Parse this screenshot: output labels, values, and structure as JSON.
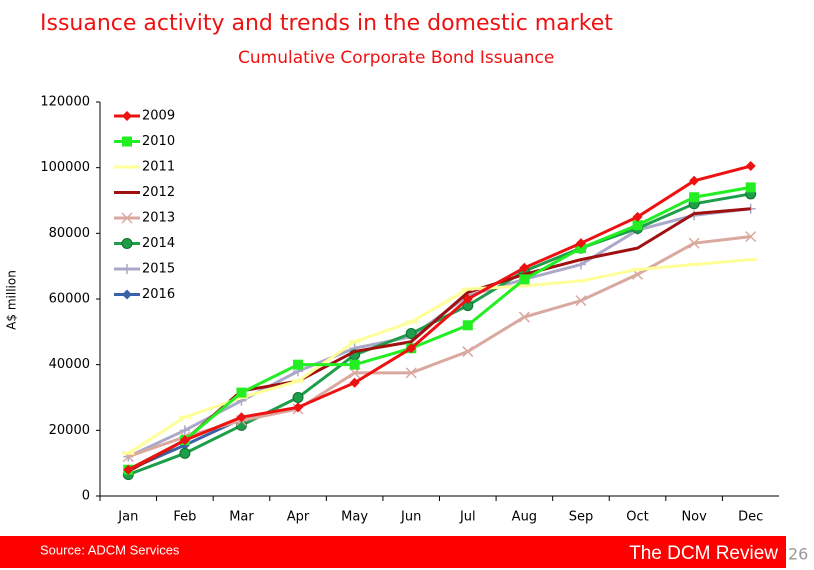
{
  "title": "Issuance activity and trends in the domestic market",
  "footer": {
    "source": "Source: ADCM Services",
    "brand": "The DCM Review",
    "page": "26"
  },
  "chart_data": {
    "type": "line",
    "title": "Cumulative Corporate Bond Issuance",
    "ylabel": "A$ million",
    "categories": [
      "Jan",
      "Feb",
      "Mar",
      "Apr",
      "May",
      "Jun",
      "Jul",
      "Aug",
      "Sep",
      "Oct",
      "Nov",
      "Dec"
    ],
    "ylim": [
      0,
      120000
    ],
    "yticks": [
      0,
      20000,
      40000,
      60000,
      80000,
      100000,
      120000
    ],
    "legend": "upper left",
    "grid": false,
    "series": [
      {
        "name": "2009",
        "color": "#ee1111",
        "marker": "diamond",
        "values": [
          8000,
          17000,
          24000,
          27000,
          34500,
          45000,
          60000,
          69500,
          77000,
          85000,
          96000,
          100500
        ]
      },
      {
        "name": "2010",
        "color": "#22ee22",
        "marker": "square",
        "values": [
          8000,
          17000,
          31500,
          40000,
          40000,
          45000,
          52000,
          66000,
          75500,
          82500,
          91000,
          94000
        ]
      },
      {
        "name": "2011",
        "color": "#ffff99",
        "marker": "dash",
        "values": [
          13000,
          24000,
          30000,
          35000,
          47000,
          53000,
          63000,
          64000,
          65500,
          69000,
          70500,
          72000
        ]
      },
      {
        "name": "2012",
        "color": "#a01010",
        "marker": "none",
        "values": [
          7500,
          17000,
          32000,
          35000,
          44000,
          47000,
          62000,
          67500,
          72000,
          75500,
          86000,
          87500
        ]
      },
      {
        "name": "2013",
        "color": "#d9a9a0",
        "marker": "x",
        "values": [
          12000,
          18000,
          23000,
          26500,
          37500,
          37500,
          44000,
          54500,
          59500,
          67500,
          77000,
          79000
        ]
      },
      {
        "name": "2014",
        "color": "#1e9e4a",
        "marker": "circle",
        "values": [
          6500,
          13000,
          21500,
          30000,
          43000,
          49500,
          58000,
          68500,
          75500,
          81500,
          89000,
          92000
        ]
      },
      {
        "name": "2015",
        "color": "#aaa8c8",
        "marker": "plus",
        "values": [
          12000,
          20000,
          29000,
          38000,
          45000,
          48500,
          61000,
          66000,
          70500,
          81000,
          85500,
          87500
        ]
      },
      {
        "name": "2016",
        "color": "#3a62a8",
        "marker": "diamond",
        "values": [
          8000,
          15500,
          23500,
          null,
          null,
          null,
          null,
          null,
          null,
          null,
          null,
          null
        ]
      }
    ]
  }
}
